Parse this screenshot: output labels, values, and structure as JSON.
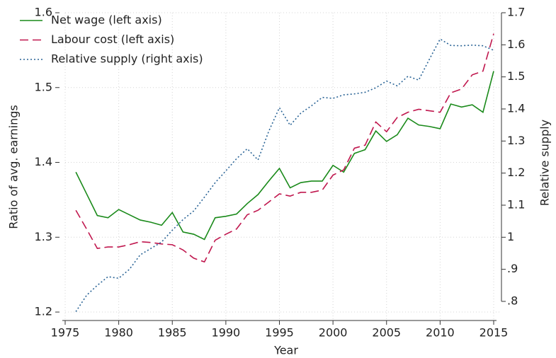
{
  "chart_data": {
    "type": "line",
    "xlabel": "Year",
    "ylabel": "Ratio of avg. earnings",
    "y2label": "Relative supply",
    "x": [
      1976,
      1977,
      1978,
      1979,
      1980,
      1981,
      1982,
      1983,
      1984,
      1985,
      1986,
      1987,
      1988,
      1989,
      1990,
      1991,
      1992,
      1993,
      1994,
      1995,
      1996,
      1997,
      1998,
      1999,
      2000,
      2001,
      2002,
      2003,
      2004,
      2005,
      2006,
      2007,
      2008,
      2009,
      2010,
      2011,
      2012,
      2013,
      2014,
      2015
    ],
    "series": [
      {
        "name": "Net wage (left axis)",
        "color": "#1a8a1a",
        "dash": "solid",
        "axis": "y",
        "values": [
          1.387,
          1.358,
          1.329,
          1.326,
          1.337,
          1.33,
          1.323,
          1.32,
          1.316,
          1.333,
          1.307,
          1.304,
          1.297,
          1.326,
          1.328,
          1.331,
          1.345,
          1.357,
          1.375,
          1.392,
          1.366,
          1.373,
          1.375,
          1.375,
          1.396,
          1.387,
          1.412,
          1.417,
          1.442,
          1.428,
          1.437,
          1.459,
          1.45,
          1.448,
          1.445,
          1.478,
          1.474,
          1.477,
          1.467,
          1.522
        ]
      },
      {
        "name": "Labour cost (left axis)",
        "color": "#c0174e",
        "dash": "dashed",
        "axis": "y",
        "values": [
          1.336,
          1.311,
          1.285,
          1.287,
          1.287,
          1.29,
          1.294,
          1.293,
          1.291,
          1.29,
          1.283,
          1.272,
          1.267,
          1.296,
          1.304,
          1.311,
          1.33,
          1.336,
          1.347,
          1.358,
          1.355,
          1.36,
          1.36,
          1.363,
          1.383,
          1.39,
          1.419,
          1.423,
          1.454,
          1.441,
          1.46,
          1.467,
          1.471,
          1.469,
          1.467,
          1.493,
          1.498,
          1.517,
          1.522,
          1.572
        ]
      },
      {
        "name": "Relative supply (right axis)",
        "color": "#2a6496",
        "dash": "dotted",
        "axis": "y2",
        "values": [
          0.768,
          0.819,
          0.85,
          0.877,
          0.872,
          0.9,
          0.945,
          0.965,
          0.985,
          1.022,
          1.055,
          1.082,
          1.125,
          1.17,
          1.207,
          1.245,
          1.276,
          1.241,
          1.33,
          1.404,
          1.349,
          1.387,
          1.41,
          1.436,
          1.433,
          1.444,
          1.447,
          1.452,
          1.466,
          1.487,
          1.472,
          1.502,
          1.49,
          1.555,
          1.618,
          1.598,
          1.597,
          1.599,
          1.597,
          1.583
        ]
      }
    ],
    "xlim": [
      1975,
      2015
    ],
    "xticks": [
      1975,
      1980,
      1985,
      1990,
      1995,
      2000,
      2005,
      2010,
      2015
    ],
    "ylim": [
      1.1887,
      1.6
    ],
    "yticks": [
      1.2,
      1.3,
      1.4,
      1.5,
      1.6
    ],
    "y2lim": [
      0.7404,
      1.7
    ],
    "y2ticks": [
      {
        "value": 0.8,
        "label": ".8"
      },
      {
        "value": 0.9,
        "label": ".9"
      },
      1,
      1.1,
      1.2,
      1.3,
      1.4,
      1.5,
      1.6,
      1.7
    ],
    "grid": true,
    "legend": "top-left"
  }
}
